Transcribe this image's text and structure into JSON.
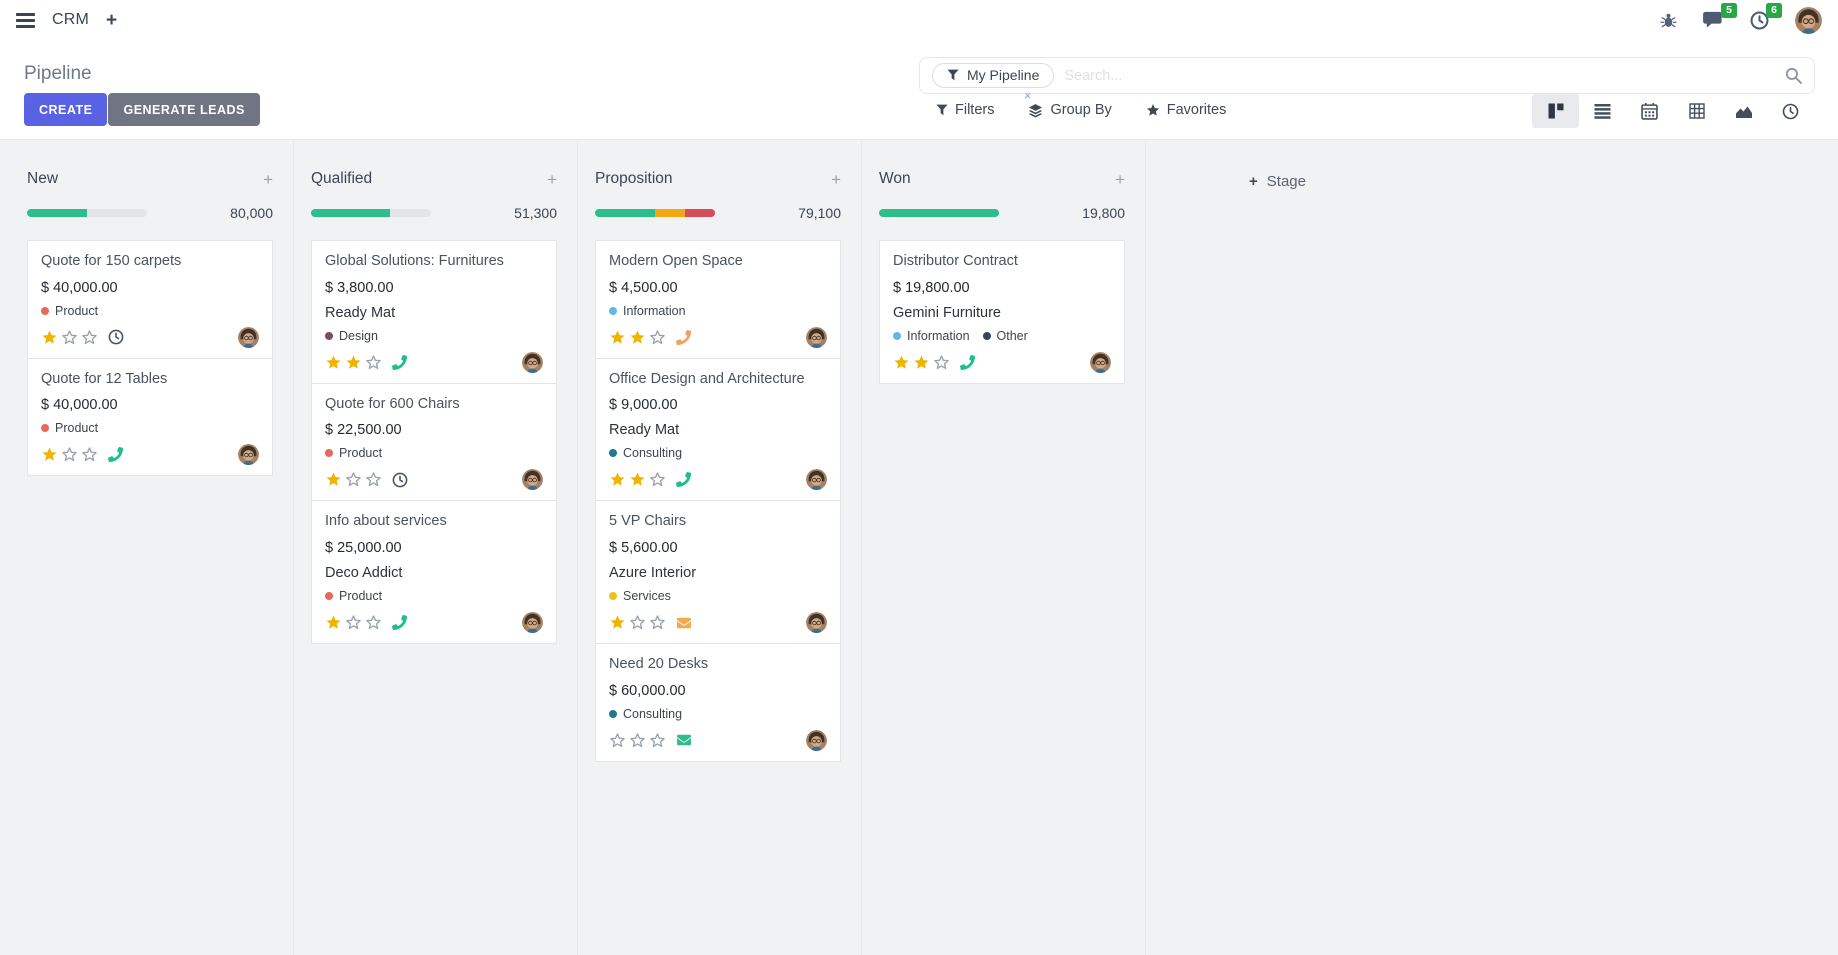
{
  "navbar": {
    "app_name": "CRM",
    "plus_label": "+",
    "messages_badge": "5",
    "activities_badge": "6"
  },
  "control_panel": {
    "title": "Pipeline",
    "buttons": {
      "create": "CREATE",
      "generate_leads": "GENERATE LEADS"
    },
    "search": {
      "facet_label": "My Pipeline",
      "placeholder": "Search...",
      "remove_facet": "×"
    },
    "menus": {
      "filters": "Filters",
      "group_by": "Group By",
      "favorites": "Favorites"
    },
    "view_switcher": [
      "kanban",
      "list",
      "calendar",
      "pivot",
      "graph",
      "activity"
    ],
    "active_view": "kanban"
  },
  "board": {
    "column_add_label": "+",
    "add_stage": {
      "plus": "+",
      "label": "Stage"
    },
    "max_stars": 3,
    "columns": [
      {
        "name": "New",
        "total": "80,000",
        "progress": [
          {
            "color": "#2ebe8c",
            "pct": 50
          }
        ],
        "cards": [
          {
            "title": "Quote for 150 carpets",
            "amount": "$ 40,000.00",
            "tags": [
              {
                "label": "Product",
                "color": "#e8685a"
              }
            ],
            "stars": 1,
            "action": {
              "icon": "clock",
              "color": "#4a5568"
            }
          },
          {
            "title": "Quote for 12 Tables",
            "amount": "$ 40,000.00",
            "tags": [
              {
                "label": "Product",
                "color": "#e8685a"
              }
            ],
            "stars": 1,
            "action": {
              "icon": "phone",
              "color": "#1fbe8e"
            }
          }
        ]
      },
      {
        "name": "Qualified",
        "total": "51,300",
        "progress": [
          {
            "color": "#2ebe8c",
            "pct": 66
          }
        ],
        "cards": [
          {
            "title": "Global Solutions: Furnitures",
            "amount": "$ 3,800.00",
            "partner": "Ready Mat",
            "tags": [
              {
                "label": "Design",
                "color": "#7c4a63"
              }
            ],
            "stars": 2,
            "action": {
              "icon": "phone",
              "color": "#1fbe8e"
            }
          },
          {
            "title": "Quote for 600 Chairs",
            "amount": "$ 22,500.00",
            "tags": [
              {
                "label": "Product",
                "color": "#e8685a"
              }
            ],
            "stars": 1,
            "action": {
              "icon": "clock",
              "color": "#4a5568"
            }
          },
          {
            "title": "Info about services",
            "amount": "$ 25,000.00",
            "partner": "Deco Addict",
            "tags": [
              {
                "label": "Product",
                "color": "#e8685a"
              }
            ],
            "stars": 1,
            "action": {
              "icon": "phone",
              "color": "#1fbe8e"
            }
          }
        ]
      },
      {
        "name": "Proposition",
        "total": "79,100",
        "progress": [
          {
            "color": "#2ebe8c",
            "pct": 50
          },
          {
            "color": "#f4a814",
            "pct": 25
          },
          {
            "color": "#d64c5b",
            "pct": 25
          }
        ],
        "cards": [
          {
            "title": "Modern Open Space",
            "amount": "$ 4,500.00",
            "tags": [
              {
                "label": "Information",
                "color": "#62b7e8"
              }
            ],
            "stars": 2,
            "action": {
              "icon": "phone",
              "color": "#f0a360"
            }
          },
          {
            "title": "Office Design and Architecture",
            "amount": "$ 9,000.00",
            "partner": "Ready Mat",
            "tags": [
              {
                "label": "Consulting",
                "color": "#1f7a8c"
              }
            ],
            "stars": 2,
            "action": {
              "icon": "phone",
              "color": "#1fbe8e"
            }
          },
          {
            "title": "5 VP Chairs",
            "amount": "$ 5,600.00",
            "partner": "Azure Interior",
            "tags": [
              {
                "label": "Services",
                "color": "#efc211"
              }
            ],
            "stars": 1,
            "action": {
              "icon": "envelope",
              "color": "#f0ab4d"
            }
          },
          {
            "title": "Need 20 Desks",
            "amount": "$ 60,000.00",
            "tags": [
              {
                "label": "Consulting",
                "color": "#1f7a8c"
              }
            ],
            "stars": 0,
            "action": {
              "icon": "envelope",
              "color": "#2ebe8c"
            }
          }
        ]
      },
      {
        "name": "Won",
        "total": "19,800",
        "progress": [
          {
            "color": "#2ebe8c",
            "pct": 100
          }
        ],
        "cards": [
          {
            "title": "Distributor Contract",
            "amount": "$ 19,800.00",
            "partner": "Gemini Furniture",
            "tags": [
              {
                "label": "Information",
                "color": "#62b7e8"
              },
              {
                "label": "Other",
                "color": "#34455e"
              }
            ],
            "stars": 2,
            "action": {
              "icon": "phone",
              "color": "#1fbe8e"
            }
          }
        ]
      }
    ]
  }
}
